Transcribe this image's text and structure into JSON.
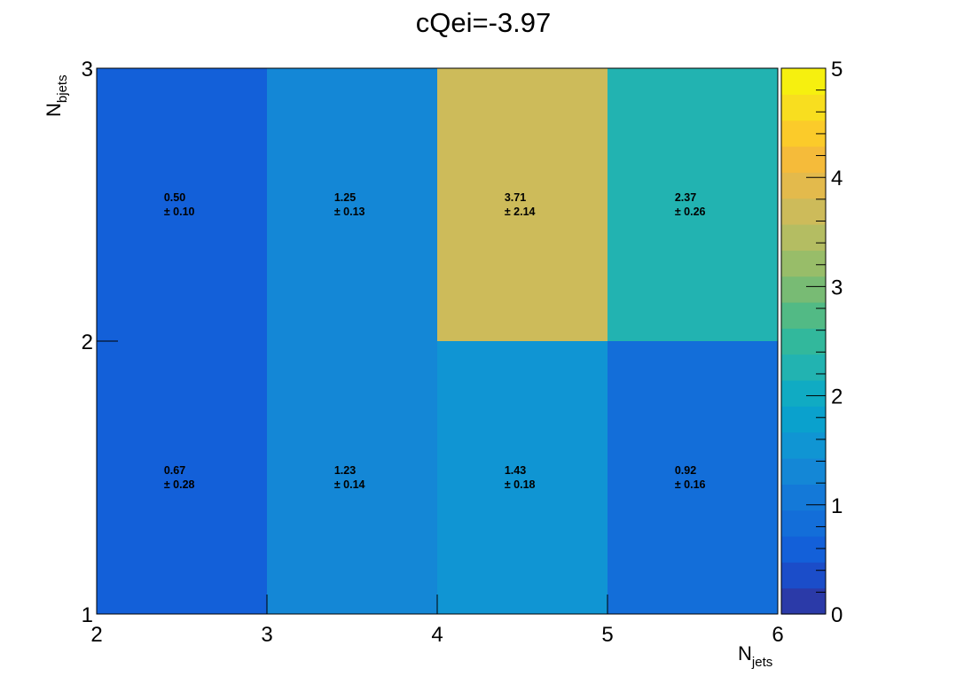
{
  "chart_data": {
    "type": "heatmap",
    "title": "cQei=-3.97",
    "xlabel": "N",
    "xlabel_sub": "jets",
    "ylabel": "N",
    "ylabel_sub": "bjets",
    "x_edges": [
      2,
      3,
      4,
      5,
      6
    ],
    "y_edges": [
      1,
      2,
      3
    ],
    "x_ticks": [
      "2",
      "3",
      "4",
      "5",
      "6"
    ],
    "y_ticks": [
      "1",
      "2",
      "3"
    ],
    "xlim": [
      2,
      6
    ],
    "ylim": [
      1,
      3
    ],
    "zlim": [
      0,
      5
    ],
    "colorbar_ticks": [
      "0",
      "1",
      "2",
      "3",
      "4",
      "5"
    ],
    "cells": [
      {
        "x": 2,
        "y": 1,
        "value": "0.67",
        "error": "± 0.28"
      },
      {
        "x": 3,
        "y": 1,
        "value": "1.23",
        "error": "± 0.14"
      },
      {
        "x": 4,
        "y": 1,
        "value": "1.43",
        "error": "± 0.18"
      },
      {
        "x": 5,
        "y": 1,
        "value": "0.92",
        "error": "± 0.16"
      },
      {
        "x": 2,
        "y": 2,
        "value": "0.50",
        "error": "± 0.10"
      },
      {
        "x": 3,
        "y": 2,
        "value": "1.25",
        "error": "± 0.13"
      },
      {
        "x": 4,
        "y": 2,
        "value": "3.71",
        "error": "± 2.14"
      },
      {
        "x": 5,
        "y": 2,
        "value": "2.37",
        "error": "± 0.26"
      }
    ],
    "palette": [
      "#2b3aa8",
      "#1b4dc9",
      "#1360d9",
      "#136ed9",
      "#1479d8",
      "#1487d6",
      "#1095d3",
      "#0aa1cd",
      "#10abc3",
      "#22b3b1",
      "#32b89c",
      "#52ba85",
      "#78bb74",
      "#98bd69",
      "#b4bd62",
      "#cdbb5a",
      "#e3ba4c",
      "#f5bb3a",
      "#fbcb2a",
      "#f8de1f",
      "#f6f00f"
    ],
    "grid": false,
    "legend": "colorbar-right"
  }
}
